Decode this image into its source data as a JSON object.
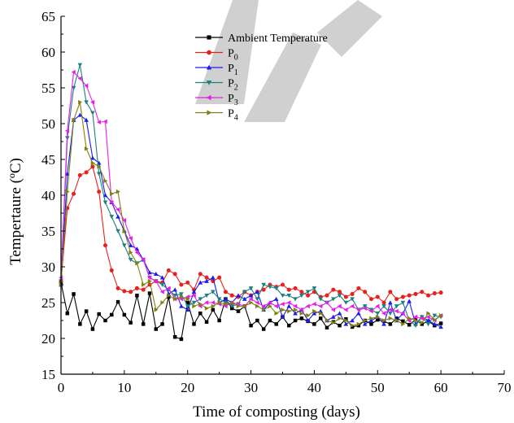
{
  "chart_data": {
    "type": "line",
    "xlabel": "Time of composting (days)",
    "ylabel": "Temperature (°C)",
    "ylabel_display": "Tempertaure (ºC)",
    "xlim": [
      0,
      70
    ],
    "ylim": [
      15,
      65
    ],
    "xticks": [
      0,
      10,
      20,
      30,
      40,
      50,
      60,
      70
    ],
    "yticks": [
      15,
      20,
      25,
      30,
      35,
      40,
      45,
      50,
      55,
      60,
      65
    ],
    "grid": false,
    "legend_position": "top-center",
    "x": [
      0,
      1,
      2,
      3,
      4,
      5,
      6,
      7,
      8,
      9,
      10,
      11,
      12,
      13,
      14,
      15,
      16,
      17,
      18,
      19,
      20,
      21,
      22,
      23,
      24,
      25,
      26,
      27,
      28,
      29,
      30,
      31,
      32,
      33,
      34,
      35,
      36,
      37,
      38,
      39,
      40,
      41,
      42,
      43,
      44,
      45,
      46,
      47,
      48,
      49,
      50,
      51,
      52,
      53,
      54,
      55,
      56,
      57,
      58,
      59,
      60
    ],
    "series": [
      {
        "name": "Ambient Temperature",
        "name_main": "Ambient Temperature",
        "name_sub": "",
        "color": "#000000",
        "marker": "square",
        "values": [
          27.8,
          23.5,
          26.2,
          22.0,
          23.8,
          21.3,
          23.4,
          22.5,
          23.3,
          25.1,
          23.3,
          22.2,
          26.0,
          22.0,
          26.3,
          21.3,
          22.0,
          25.8,
          20.2,
          19.9,
          25.0,
          22.0,
          23.5,
          22.3,
          24.0,
          22.5,
          25.5,
          24.2,
          23.8,
          24.5,
          21.8,
          22.5,
          21.3,
          22.5,
          22.0,
          23.0,
          21.8,
          22.5,
          22.8,
          22.4,
          22.0,
          22.8,
          21.5,
          22.3,
          21.8,
          22.7,
          21.6,
          21.8,
          22.5,
          22.0,
          22.6,
          22.4,
          22.0,
          22.8,
          22.4,
          21.9,
          22.6,
          22.0,
          22.4,
          21.8,
          22.1
        ]
      },
      {
        "name": "P0",
        "name_main": "P",
        "name_sub": "0",
        "color": "#e8211d",
        "marker": "circle",
        "values": [
          28.0,
          38.2,
          40.2,
          42.8,
          43.2,
          44.0,
          40.5,
          33.0,
          29.5,
          27.0,
          26.6,
          26.5,
          27.0,
          26.8,
          27.5,
          28.0,
          27.8,
          29.5,
          29.0,
          27.5,
          27.8,
          26.8,
          29.0,
          28.5,
          28.0,
          28.5,
          26.5,
          26.0,
          25.8,
          26.5,
          26.0,
          26.5,
          26.8,
          27.5,
          27.2,
          27.5,
          26.8,
          27.0,
          26.5,
          26.0,
          26.5,
          25.8,
          26.0,
          26.8,
          26.5,
          25.8,
          26.2,
          27.0,
          26.5,
          25.5,
          25.8,
          25.0,
          26.5,
          25.5,
          25.8,
          26.0,
          26.2,
          26.5,
          26.0,
          26.3,
          26.4
        ]
      },
      {
        "name": "P1",
        "name_main": "P",
        "name_sub": "1",
        "color": "#1c1cf0",
        "marker": "triangle-up",
        "values": [
          27.5,
          43.0,
          50.5,
          51.2,
          50.5,
          45.2,
          44.5,
          40.0,
          39.0,
          37.0,
          35.0,
          33.0,
          32.5,
          31.0,
          29.2,
          29.0,
          28.5,
          26.2,
          26.8,
          24.5,
          24.0,
          26.5,
          27.8,
          28.0,
          28.5,
          25.0,
          25.5,
          25.0,
          26.0,
          25.5,
          26.0,
          26.5,
          24.0,
          25.0,
          25.5,
          23.0,
          24.5,
          23.5,
          24.0,
          22.5,
          23.5,
          23.8,
          22.5,
          23.0,
          23.5,
          22.0,
          22.5,
          23.5,
          22.0,
          22.5,
          23.0,
          22.0,
          25.0,
          22.5,
          23.5,
          25.2,
          22.0,
          23.0,
          22.5,
          22.0,
          21.6
        ]
      },
      {
        "name": "P2",
        "name_main": "P",
        "name_sub": "2",
        "color": "#1a8080",
        "marker": "triangle-down",
        "values": [
          28.0,
          48.0,
          55.0,
          58.2,
          53.0,
          51.5,
          43.0,
          39.0,
          37.0,
          35.0,
          33.0,
          31.0,
          30.5,
          31.0,
          28.5,
          28.0,
          27.5,
          26.8,
          26.0,
          26.2,
          24.5,
          25.0,
          25.5,
          26.0,
          26.5,
          25.5,
          25.0,
          24.5,
          24.8,
          26.5,
          27.0,
          25.5,
          27.5,
          27.2,
          27.0,
          26.0,
          26.0,
          25.5,
          26.0,
          26.5,
          27.0,
          25.5,
          25.0,
          25.5,
          26.0,
          25.0,
          25.5,
          24.0,
          24.5,
          24.0,
          23.5,
          24.5,
          23.5,
          24.5,
          25.0,
          22.5,
          21.8,
          23.0,
          22.0,
          23.2,
          23.0
        ]
      },
      {
        "name": "P3",
        "name_main": "P",
        "name_sub": "3",
        "color": "#e81ee8",
        "marker": "triangle-left",
        "values": [
          28.5,
          49.0,
          57.2,
          56.3,
          55.3,
          53.0,
          50.2,
          50.3,
          39.0,
          38.0,
          36.5,
          34.0,
          32.0,
          31.0,
          28.5,
          28.0,
          26.5,
          27.0,
          25.5,
          25.5,
          25.8,
          26.0,
          24.5,
          25.0,
          25.0,
          24.8,
          24.5,
          25.0,
          24.8,
          24.5,
          25.5,
          25.0,
          24.5,
          25.0,
          24.5,
          24.8,
          25.0,
          24.5,
          24.0,
          24.5,
          24.8,
          24.5,
          25.0,
          24.0,
          24.5,
          24.0,
          24.5,
          24.0,
          24.2,
          23.8,
          24.5,
          23.5,
          24.0,
          23.8,
          23.5,
          22.5,
          23.0,
          22.8,
          23.0,
          22.5,
          23.2
        ]
      },
      {
        "name": "P4",
        "name_main": "P",
        "name_sub": "4",
        "color": "#808010",
        "marker": "triangle-right",
        "values": [
          27.5,
          40.5,
          50.5,
          53.0,
          46.5,
          44.5,
          44.0,
          42.0,
          40.2,
          40.5,
          35.0,
          32.0,
          30.5,
          27.5,
          28.0,
          24.0,
          25.0,
          26.0,
          25.5,
          25.8,
          25.5,
          24.5,
          24.8,
          24.2,
          24.5,
          25.0,
          24.8,
          25.0,
          24.5,
          24.5,
          25.0,
          24.5,
          24.0,
          24.5,
          23.5,
          24.0,
          23.8,
          24.0,
          23.5,
          23.2,
          23.8,
          23.5,
          22.5,
          22.2,
          22.8,
          22.5,
          21.8,
          22.0,
          22.5,
          22.8,
          23.0,
          22.5,
          22.8,
          22.5,
          22.0,
          22.8,
          22.5,
          22.2,
          23.5,
          22.6,
          23.2
        ]
      }
    ]
  }
}
